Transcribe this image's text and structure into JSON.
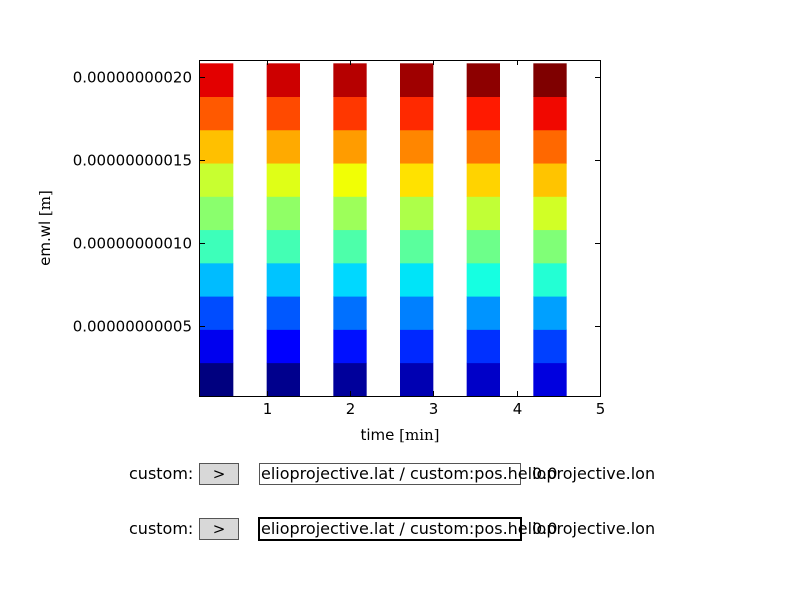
{
  "chart_data": {
    "type": "heatmap",
    "title": "",
    "xlabel": "time",
    "xlabel_unit": "min",
    "ylabel": "em.wl",
    "ylabel_unit": "m",
    "xlim": [
      0.2,
      5
    ],
    "ylim": [
      8e-12,
      2.1e-10
    ],
    "xticks": [
      1,
      2,
      3,
      4,
      5
    ],
    "xtick_labels": [
      "1",
      "2",
      "3",
      "4",
      "5"
    ],
    "yticks": [
      5e-11,
      1e-10,
      1.5e-10,
      2e-10
    ],
    "ytick_labels": [
      "0.00000000005",
      "0.00000000010",
      "0.00000000015",
      "0.00000000020"
    ],
    "colormap": "jet",
    "columns_x": [
      [
        0.2,
        0.6
      ],
      [
        1.0,
        1.4
      ],
      [
        1.8,
        2.2
      ],
      [
        2.6,
        3.0
      ],
      [
        3.4,
        3.8
      ],
      [
        4.2,
        4.6
      ]
    ],
    "rows_y_edges": [
      8e-12,
      2.8e-11,
      4.8e-11,
      6.8e-11,
      8.8e-11,
      1.08e-10,
      1.28e-10,
      1.48e-10,
      1.68e-10,
      1.88e-10,
      2.08e-10
    ],
    "cell_colors": [
      [
        "#00007f",
        "#0000ef",
        "#004cff",
        "#00bcff",
        "#3dffba",
        "#8aff6d",
        "#c8ff30",
        "#ffc000",
        "#ff5900",
        "#e30000"
      ],
      [
        "#00008d",
        "#0000ff",
        "#0058ff",
        "#00c4ff",
        "#43ffb4",
        "#90ff66",
        "#dfff17",
        "#ffaa00",
        "#ff4a00",
        "#cd0000"
      ],
      [
        "#00009b",
        "#0010ff",
        "#0070ff",
        "#00d8ff",
        "#4dffaa",
        "#9dff5a",
        "#f1ff05",
        "#ff9c00",
        "#ff3700",
        "#b60000"
      ],
      [
        "#0000b2",
        "#0028ff",
        "#0080ff",
        "#00e4f8",
        "#5aff9d",
        "#adff49",
        "#ffe200",
        "#ff8600",
        "#ff2900",
        "#9f0000"
      ],
      [
        "#0000c8",
        "#0030ff",
        "#0094ff",
        "#16ffe1",
        "#6dff8a",
        "#c1ff36",
        "#ffd300",
        "#ff7300",
        "#ff1a00",
        "#8d0000"
      ],
      [
        "#0000df",
        "#0040ff",
        "#00a0ff",
        "#23ffd4",
        "#80ff77",
        "#d1ff26",
        "#ffc400",
        "#ff6800",
        "#f10800",
        "#7f0000"
      ]
    ]
  },
  "controls": [
    {
      "prefix": "custom:",
      "button_label": ">",
      "box_text": "elioprojective.lat / custom:pos.helioprojective.lon",
      "value": "0.0",
      "focused": false
    },
    {
      "prefix": "custom:",
      "button_label": ">",
      "box_text": "elioprojective.lat / custom:pos.helioprojective.lon",
      "value": "0.0",
      "focused": true
    }
  ]
}
